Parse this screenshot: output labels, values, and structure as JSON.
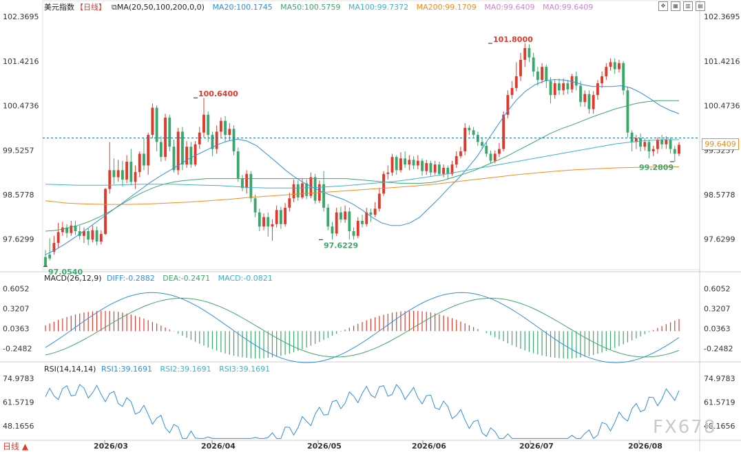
{
  "header": {
    "title": "美元指数",
    "period": "【日线】",
    "ma_params": "MA(20,50,100,200,0,0)",
    "ma": [
      {
        "label": "MA20:100.1745",
        "color": "#2f8de4"
      },
      {
        "label": "MA50:100.5759",
        "color": "#3aa86a"
      },
      {
        "label": "MA100:99.7372",
        "color": "#3bb3c9"
      },
      {
        "label": "MA200:99.1709",
        "color": "#f28a1c"
      },
      {
        "label": "MA0:99.6409",
        "color": "#d97fd0"
      },
      {
        "label": "MA0:99.6409",
        "color": "#d97fd0"
      }
    ]
  },
  "toolbar_icons": [
    "expand-icon",
    "grid-icon",
    "layout-icon",
    "book-icon"
  ],
  "macd": {
    "title": "MACD(26,12,9)",
    "diff": "DIFF:-0.2882",
    "dea": "DEA:-0.2471",
    "macd": "MACD:-0.0821",
    "yticks": [
      "0.6052",
      "0.3207",
      "0.0363",
      "-0.2482"
    ]
  },
  "rsi": {
    "title": "RSI(14,14,14)",
    "rsi1": "RSI1:39.1691",
    "rsi2": "RSI2:39.1691",
    "rsi3": "RSI3:39.1691",
    "yticks": [
      "74.9783",
      "61.5719",
      "48.1656"
    ]
  },
  "current_price": "99.6409",
  "bottom_label": "日线",
  "watermark": "FX678",
  "colors": {
    "up": "#e0392b",
    "down": "#3aa86a",
    "ma20": "#2f8de4",
    "ma50": "#3aa86a",
    "ma100": "#3bb3c9",
    "ma200": "#f28a1c",
    "dashed": "#1b6e8c"
  },
  "chart_data": {
    "type": "candlestick",
    "price_axis": [
      "102.3695",
      "101.4216",
      "100.4736",
      "99.5257",
      "98.5778",
      "97.6299"
    ],
    "x_labels": [
      "2026/03",
      "2026/04",
      "2026/05",
      "2026/06",
      "2026/07",
      "2026/08"
    ],
    "annotations": [
      {
        "text": "97.0540",
        "kind": "low"
      },
      {
        "text": "100.6400",
        "kind": "high"
      },
      {
        "text": "97.6229",
        "kind": "low"
      },
      {
        "text": "101.8000",
        "kind": "high"
      },
      {
        "text": "99.2809",
        "kind": "low"
      }
    ],
    "candles": [
      [
        97.25,
        97.05,
        97.4,
        97.04
      ],
      [
        97.3,
        97.22,
        97.65,
        97.18
      ],
      [
        97.36,
        97.55,
        97.7,
        97.3
      ],
      [
        97.55,
        97.78,
        97.98,
        97.45
      ],
      [
        97.78,
        97.88,
        98.0,
        97.7
      ],
      [
        97.88,
        97.76,
        97.95,
        97.66
      ],
      [
        97.76,
        97.92,
        98.02,
        97.7
      ],
      [
        97.92,
        97.8,
        98.02,
        97.72
      ],
      [
        97.8,
        97.7,
        97.92,
        97.62
      ],
      [
        97.7,
        97.8,
        97.88,
        97.55
      ],
      [
        97.8,
        97.62,
        97.86,
        97.5
      ],
      [
        97.62,
        97.82,
        97.92,
        97.56
      ],
      [
        97.82,
        97.58,
        97.9,
        97.5
      ],
      [
        97.58,
        97.74,
        97.82,
        97.52
      ],
      [
        97.74,
        98.7,
        98.72,
        97.72
      ],
      [
        98.7,
        99.1,
        99.7,
        98.6
      ],
      [
        99.1,
        98.95,
        99.35,
        98.8
      ],
      [
        98.95,
        99.1,
        99.32,
        98.85
      ],
      [
        99.1,
        98.9,
        99.3,
        98.75
      ],
      [
        98.9,
        99.28,
        99.42,
        98.82
      ],
      [
        99.28,
        98.85,
        99.55,
        98.78
      ],
      [
        98.85,
        99.06,
        99.2,
        98.7
      ],
      [
        99.06,
        99.45,
        99.5,
        98.95
      ],
      [
        99.45,
        99.2,
        99.78,
        99.1
      ],
      [
        99.2,
        99.85,
        99.9,
        99.0
      ],
      [
        99.85,
        100.43,
        100.52,
        99.78
      ],
      [
        100.43,
        99.7,
        100.48,
        99.5
      ],
      [
        99.7,
        99.38,
        99.82,
        99.28
      ],
      [
        99.38,
        100.22,
        100.3,
        99.3
      ],
      [
        100.22,
        99.6,
        100.28,
        99.5
      ],
      [
        99.6,
        99.1,
        99.75,
        99.05
      ],
      [
        99.1,
        99.92,
        100.0,
        99.0
      ],
      [
        99.92,
        99.22,
        100.02,
        99.1
      ],
      [
        99.22,
        99.6,
        99.72,
        99.15
      ],
      [
        99.6,
        99.22,
        99.7,
        99.15
      ],
      [
        99.22,
        99.65,
        99.72,
        99.18
      ],
      [
        99.65,
        99.9,
        100.02,
        99.55
      ],
      [
        99.9,
        100.28,
        100.64,
        99.8
      ],
      [
        100.28,
        99.85,
        100.35,
        99.7
      ],
      [
        99.85,
        99.55,
        99.92,
        99.4
      ],
      [
        99.55,
        99.92,
        100.05,
        99.45
      ],
      [
        99.92,
        100.15,
        100.22,
        99.8
      ],
      [
        100.15,
        99.85,
        100.25,
        99.7
      ],
      [
        99.85,
        99.98,
        100.1,
        99.72
      ],
      [
        99.98,
        99.5,
        100.05,
        99.42
      ],
      [
        99.5,
        98.92,
        99.58,
        98.85
      ],
      [
        98.92,
        98.72,
        99.0,
        98.65
      ],
      [
        98.72,
        99.02,
        99.1,
        98.6
      ],
      [
        99.02,
        98.5,
        99.08,
        98.42
      ],
      [
        98.5,
        98.2,
        98.58,
        98.1
      ],
      [
        98.2,
        97.9,
        98.28,
        97.8
      ],
      [
        97.9,
        98.1,
        98.18,
        97.82
      ],
      [
        98.1,
        97.9,
        98.2,
        97.68
      ],
      [
        97.9,
        97.95,
        98.05,
        97.6
      ],
      [
        97.95,
        98.25,
        98.35,
        97.88
      ],
      [
        98.25,
        97.95,
        98.32,
        97.85
      ],
      [
        97.95,
        98.3,
        98.4,
        97.9
      ],
      [
        98.3,
        98.5,
        98.62,
        98.22
      ],
      [
        98.5,
        98.8,
        98.9,
        98.42
      ],
      [
        98.8,
        98.52,
        98.88,
        98.45
      ],
      [
        98.52,
        98.82,
        98.92,
        98.48
      ],
      [
        98.82,
        98.55,
        98.9,
        98.48
      ],
      [
        98.55,
        98.95,
        99.05,
        98.5
      ],
      [
        98.95,
        98.45,
        99.02,
        98.38
      ],
      [
        98.45,
        98.8,
        98.88,
        98.4
      ],
      [
        98.8,
        98.3,
        99.08,
        98.22
      ],
      [
        98.3,
        97.9,
        98.38,
        97.82
      ],
      [
        97.9,
        97.75,
        98.0,
        97.62
      ],
      [
        97.75,
        98.2,
        98.3,
        97.7
      ],
      [
        98.2,
        98.05,
        98.32,
        97.98
      ],
      [
        98.05,
        98.22,
        98.35,
        97.98
      ],
      [
        98.22,
        97.8,
        98.3,
        97.62
      ],
      [
        97.8,
        97.7,
        97.88,
        97.62
      ],
      [
        97.7,
        98.02,
        98.1,
        97.65
      ],
      [
        98.02,
        97.95,
        98.15,
        97.88
      ],
      [
        97.95,
        98.2,
        98.3,
        97.9
      ],
      [
        98.2,
        98.15,
        98.28,
        98.0
      ],
      [
        98.15,
        98.28,
        98.42,
        98.1
      ],
      [
        98.28,
        98.6,
        98.72,
        98.22
      ],
      [
        98.6,
        99.02,
        99.08,
        98.55
      ],
      [
        99.02,
        99.05,
        99.2,
        98.9
      ],
      [
        99.05,
        99.38,
        99.45,
        98.98
      ],
      [
        99.38,
        99.1,
        99.42,
        99.0
      ],
      [
        99.1,
        99.35,
        99.48,
        99.05
      ],
      [
        99.35,
        99.22,
        99.5,
        99.15
      ],
      [
        99.22,
        99.32,
        99.42,
        99.1
      ],
      [
        99.32,
        99.2,
        99.4,
        99.12
      ],
      [
        99.2,
        99.3,
        99.42,
        99.12
      ],
      [
        99.3,
        99.08,
        99.35,
        98.98
      ],
      [
        99.08,
        99.25,
        99.32,
        99.0
      ],
      [
        99.25,
        99.05,
        99.3,
        98.98
      ],
      [
        99.05,
        99.22,
        99.3,
        99.0
      ],
      [
        99.22,
        99.02,
        99.28,
        98.98
      ],
      [
        99.02,
        99.15,
        99.22,
        98.95
      ],
      [
        99.15,
        99.02,
        99.2,
        98.9
      ],
      [
        99.02,
        99.22,
        99.3,
        98.98
      ],
      [
        99.22,
        99.4,
        99.5,
        99.15
      ],
      [
        99.4,
        99.5,
        99.6,
        99.35
      ],
      [
        99.5,
        100.0,
        100.1,
        99.42
      ],
      [
        100.0,
        99.95,
        100.05,
        99.85
      ],
      [
        99.95,
        99.85,
        100.02,
        99.8
      ],
      [
        99.85,
        99.7,
        99.92,
        99.62
      ],
      [
        99.7,
        99.62,
        99.8,
        99.55
      ],
      [
        99.62,
        99.45,
        99.7,
        99.38
      ],
      [
        99.45,
        99.3,
        99.52,
        99.25
      ],
      [
        99.3,
        99.45,
        99.52,
        99.25
      ],
      [
        99.45,
        99.55,
        99.68,
        99.38
      ],
      [
        99.55,
        100.28,
        100.35,
        99.5
      ],
      [
        100.28,
        100.7,
        100.8,
        100.2
      ],
      [
        100.7,
        100.85,
        101.0,
        100.62
      ],
      [
        100.85,
        101.1,
        101.4,
        100.78
      ],
      [
        101.1,
        101.45,
        101.6,
        101.0
      ],
      [
        101.45,
        101.7,
        101.8,
        101.3
      ],
      [
        101.7,
        101.5,
        101.78,
        101.4
      ],
      [
        101.5,
        101.2,
        101.6,
        101.1
      ],
      [
        101.2,
        101.02,
        101.3,
        100.9
      ],
      [
        101.02,
        101.3,
        101.38,
        100.95
      ],
      [
        101.3,
        101.0,
        101.35,
        100.85
      ],
      [
        101.0,
        100.7,
        101.08,
        100.52
      ],
      [
        100.7,
        100.95,
        101.02,
        100.62
      ],
      [
        100.95,
        100.8,
        101.05,
        100.7
      ],
      [
        100.8,
        100.95,
        101.05,
        100.7
      ],
      [
        100.95,
        100.82,
        101.02,
        100.72
      ],
      [
        100.82,
        101.1,
        101.15,
        100.75
      ],
      [
        101.1,
        100.9,
        101.2,
        100.8
      ],
      [
        100.9,
        100.55,
        101.0,
        100.45
      ],
      [
        100.55,
        100.72,
        100.8,
        100.45
      ],
      [
        100.72,
        100.4,
        100.8,
        100.3
      ],
      [
        100.4,
        100.7,
        100.78,
        100.3
      ],
      [
        100.7,
        100.95,
        101.02,
        100.6
      ],
      [
        100.95,
        101.1,
        101.2,
        100.85
      ],
      [
        101.1,
        101.3,
        101.38,
        101.02
      ],
      [
        101.3,
        101.4,
        101.48,
        101.22
      ],
      [
        101.4,
        101.25,
        101.48,
        101.15
      ],
      [
        101.25,
        101.38,
        101.45,
        101.18
      ],
      [
        101.38,
        100.8,
        101.42,
        100.7
      ],
      [
        100.8,
        99.9,
        100.88,
        99.8
      ],
      [
        99.9,
        99.7,
        99.95,
        99.5
      ],
      [
        99.7,
        99.78,
        99.85,
        99.55
      ],
      [
        99.78,
        99.6,
        99.88,
        99.5
      ],
      [
        99.6,
        99.7,
        99.78,
        99.52
      ],
      [
        99.7,
        99.5,
        99.75,
        99.35
      ],
      [
        99.5,
        99.55,
        99.62,
        99.4
      ],
      [
        99.55,
        99.75,
        99.8,
        99.45
      ],
      [
        99.75,
        99.65,
        99.85,
        99.55
      ],
      [
        99.65,
        99.75,
        99.82,
        99.55
      ],
      [
        99.75,
        99.55,
        99.8,
        99.45
      ],
      [
        99.55,
        99.45,
        99.62,
        99.28
      ],
      [
        99.45,
        99.64,
        99.7,
        99.4
      ]
    ],
    "series": [
      {
        "name": "MA20",
        "values": [
          97.3,
          97.4,
          97.52,
          97.66,
          97.8,
          97.95,
          98.1,
          98.25,
          98.4,
          98.55,
          98.7,
          98.85,
          98.98,
          99.1,
          99.22,
          99.35,
          99.45,
          99.55,
          99.65,
          99.72,
          99.76,
          99.72,
          99.62,
          99.45,
          99.28,
          99.1,
          98.95,
          98.82,
          98.72,
          98.62,
          98.55,
          98.48,
          98.38,
          98.25,
          98.1,
          97.98,
          97.92,
          97.92,
          97.98,
          98.1,
          98.3,
          98.5,
          98.72,
          98.92,
          99.15,
          99.4,
          99.72,
          100.02,
          100.32,
          100.58,
          100.78,
          100.92,
          101.0,
          101.03,
          101.02,
          100.98,
          100.92,
          100.88,
          100.88,
          100.88,
          100.9,
          100.85,
          100.75,
          100.62,
          100.48,
          100.38,
          100.3
        ]
      },
      {
        "name": "MA50",
        "values": [
          97.8,
          97.82,
          97.86,
          97.92,
          98.0,
          98.1,
          98.22,
          98.36,
          98.5,
          98.62,
          98.72,
          98.8,
          98.85,
          98.88,
          98.9,
          98.92,
          98.92,
          98.92,
          98.92,
          98.92,
          98.92,
          98.92,
          98.92,
          98.92,
          98.92,
          98.92,
          98.92,
          98.92,
          98.92,
          98.9,
          98.88,
          98.86,
          98.84,
          98.82,
          98.82,
          98.82,
          98.84,
          98.88,
          98.95,
          99.02,
          99.1,
          99.2,
          99.3,
          99.4,
          99.52,
          99.64,
          99.76,
          99.88,
          99.98,
          100.06,
          100.15,
          100.24,
          100.32,
          100.4,
          100.46,
          100.52,
          100.56,
          100.58,
          100.58,
          100.58
        ]
      },
      {
        "name": "MA100",
        "values": [
          98.8,
          98.79,
          98.78,
          98.78,
          98.78,
          98.79,
          98.8,
          98.8,
          98.8,
          98.79,
          98.78,
          98.77,
          98.75,
          98.73,
          98.72,
          98.72,
          98.72,
          98.73,
          98.75,
          98.77,
          98.8,
          98.83,
          98.86,
          98.9,
          98.95,
          99.0,
          99.06,
          99.12,
          99.18,
          99.24,
          99.3,
          99.36,
          99.42,
          99.48,
          99.54,
          99.6,
          99.66,
          99.7,
          99.73,
          99.75,
          99.75
        ]
      },
      {
        "name": "MA200",
        "values": [
          98.45,
          98.4,
          98.38,
          98.37,
          98.37,
          98.38,
          98.4,
          98.42,
          98.45,
          98.48,
          98.52,
          98.55,
          98.58,
          98.61,
          98.64,
          98.67,
          98.7,
          98.73,
          98.76,
          98.8,
          98.85,
          98.9,
          98.95,
          99.0,
          99.04,
          99.08,
          99.11,
          99.13,
          99.15,
          99.16,
          99.17,
          99.17
        ]
      }
    ]
  }
}
